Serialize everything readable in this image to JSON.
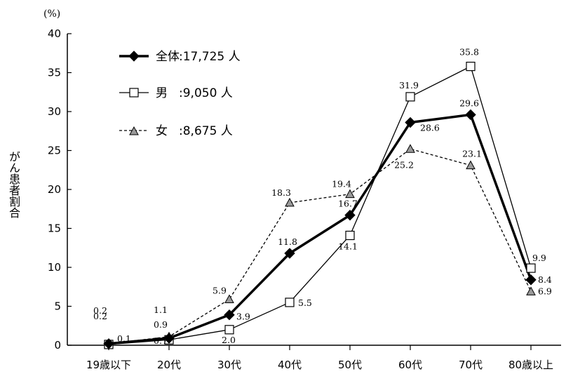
{
  "chart_data": {
    "type": "line",
    "unit_label": "(%)",
    "ylabel": "がん患者割合",
    "ylim": [
      0,
      40
    ],
    "yticks": [
      0,
      5,
      10,
      15,
      20,
      25,
      30,
      35,
      40
    ],
    "categories": [
      "19歳以下",
      "20代",
      "30代",
      "40代",
      "50代",
      "60代",
      "70代",
      "80歳以上"
    ],
    "grid": false,
    "legend_position": "top-left",
    "series": [
      {
        "key": "total",
        "name": "全体",
        "count_label": ":17,725 人",
        "values": [
          0.2,
          0.9,
          3.9,
          11.8,
          16.7,
          28.6,
          29.6,
          8.4
        ],
        "labels": [
          "0.2",
          "0.9",
          "3.9",
          "11.8",
          "16.7",
          "28.6",
          "29.6",
          "8.4"
        ]
      },
      {
        "key": "male",
        "name": "男",
        "count_label": ":9,050 人",
        "values": [
          0.1,
          0.7,
          2.0,
          5.5,
          14.1,
          31.9,
          35.8,
          9.9
        ],
        "labels": [
          "0.1",
          "0.7",
          "2.0",
          "5.5",
          "14.1",
          "31.9",
          "35.8",
          "9.9"
        ]
      },
      {
        "key": "female",
        "name": "女",
        "count_label": ":8,675 人",
        "values": [
          0.2,
          1.1,
          5.9,
          18.3,
          19.4,
          25.2,
          23.1,
          6.9
        ],
        "labels": [
          "0.2",
          "1.1",
          "5.9",
          "18.3",
          "19.4",
          "25.2",
          "23.1",
          "6.9"
        ]
      }
    ],
    "colors": {
      "total": "#000000",
      "male": "#ffffff",
      "female": "#9a9a9a"
    }
  }
}
